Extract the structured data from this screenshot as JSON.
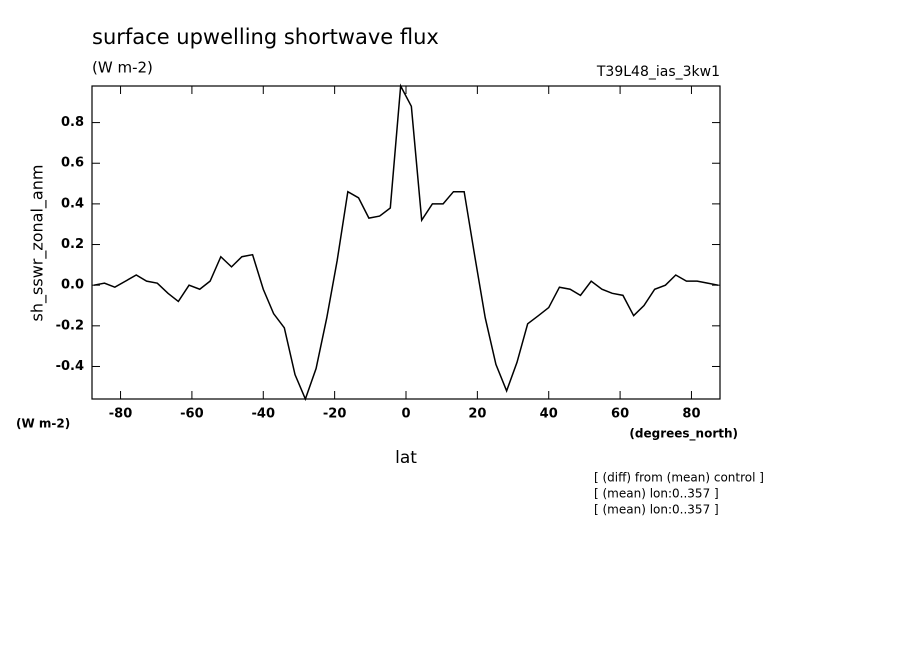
{
  "chart_data": {
    "type": "line",
    "title": "surface upwelling shortwave flux",
    "units": "(W m-2)",
    "dataset": "T39L48_ias_3kw1",
    "ylabel": "sh_sswr_zonal_anm",
    "yunits": "(W m-2)",
    "xunits": "(degrees_north)",
    "xlabel": "lat",
    "notes": [
      "[ (diff) from (mean) control ]",
      "[ (mean) lon:0..357 ]",
      "[ (mean) lon:0..357 ]"
    ],
    "x": [
      -87.5,
      -84.5,
      -81.6,
      -78.6,
      -75.6,
      -72.7,
      -69.7,
      -66.7,
      -63.8,
      -60.8,
      -57.8,
      -54.9,
      -51.9,
      -48.9,
      -46.0,
      -43.0,
      -40.0,
      -37.1,
      -34.1,
      -31.1,
      -28.2,
      -25.2,
      -22.2,
      -19.3,
      -16.3,
      -13.3,
      -10.4,
      -7.4,
      -4.4,
      -1.5,
      1.5,
      4.4,
      7.4,
      10.4,
      13.3,
      16.3,
      19.3,
      22.2,
      25.2,
      28.2,
      31.1,
      34.1,
      37.1,
      40.0,
      43.0,
      46.0,
      48.9,
      51.9,
      54.9,
      57.8,
      60.8,
      63.8,
      66.7,
      69.7,
      72.7,
      75.6,
      78.6,
      81.6,
      84.5,
      87.5
    ],
    "series": [
      {
        "name": "sh_sswr_zonal_anm",
        "color": "#000000",
        "values": [
          0.0,
          0.01,
          -0.01,
          0.02,
          0.05,
          0.02,
          0.01,
          -0.04,
          -0.08,
          0.0,
          -0.02,
          0.02,
          0.14,
          0.09,
          0.14,
          0.15,
          -0.02,
          -0.14,
          -0.21,
          -0.44,
          -0.56,
          -0.41,
          -0.16,
          0.12,
          0.46,
          0.43,
          0.33,
          0.34,
          0.38,
          0.98,
          0.88,
          0.32,
          0.4,
          0.4,
          0.46,
          0.46,
          0.14,
          -0.16,
          -0.39,
          -0.52,
          -0.38,
          -0.19,
          -0.15,
          -0.11,
          -0.01,
          -0.02,
          -0.05,
          0.02,
          -0.02,
          -0.04,
          -0.05,
          -0.15,
          -0.1,
          -0.02,
          0.0,
          0.05,
          0.02,
          0.02,
          0.01,
          0.0
        ]
      }
    ],
    "xlim": [
      -88,
      88
    ],
    "ylim": [
      -0.56,
      0.98
    ],
    "xticks": [
      -80,
      -60,
      -40,
      -20,
      0,
      20,
      40,
      60,
      80
    ],
    "yticks": [
      -0.4,
      -0.2,
      {
        "value": 0,
        "label": "0.0"
      },
      0.2,
      0.4,
      0.6,
      0.8
    ]
  }
}
